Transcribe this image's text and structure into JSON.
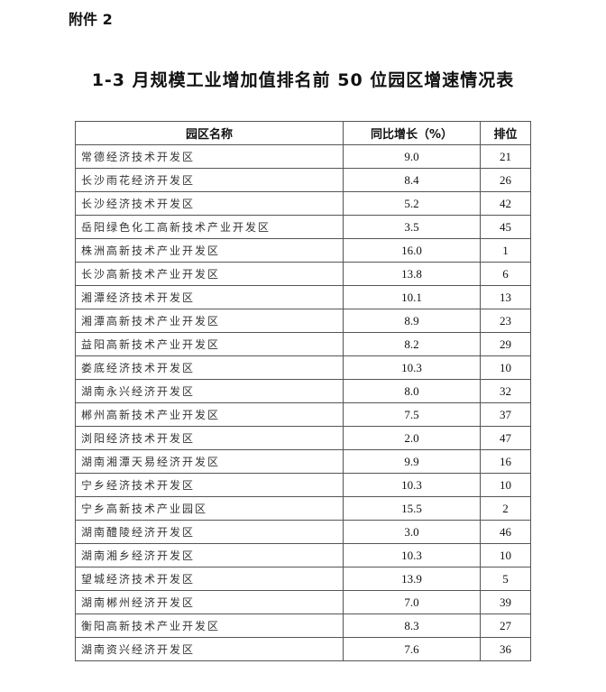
{
  "attachment_label": "附件 2",
  "title": "1-3 月规模工业增加值排名前 50 位园区增速情况表",
  "table": {
    "headers": [
      "园区名称",
      "同比增长（%）",
      "排位"
    ],
    "rows": [
      [
        "常德经济技术开发区",
        "9.0",
        "21"
      ],
      [
        "长沙雨花经济开发区",
        "8.4",
        "26"
      ],
      [
        "长沙经济技术开发区",
        "5.2",
        "42"
      ],
      [
        "岳阳绿色化工高新技术产业开发区",
        "3.5",
        "45"
      ],
      [
        "株洲高新技术产业开发区",
        "16.0",
        "1"
      ],
      [
        "长沙高新技术产业开发区",
        "13.8",
        "6"
      ],
      [
        "湘潭经济技术开发区",
        "10.1",
        "13"
      ],
      [
        "湘潭高新技术产业开发区",
        "8.9",
        "23"
      ],
      [
        "益阳高新技术产业开发区",
        "8.2",
        "29"
      ],
      [
        "娄底经济技术开发区",
        "10.3",
        "10"
      ],
      [
        "湖南永兴经济开发区",
        "8.0",
        "32"
      ],
      [
        "郴州高新技术产业开发区",
        "7.5",
        "37"
      ],
      [
        "浏阳经济技术开发区",
        "2.0",
        "47"
      ],
      [
        "湖南湘潭天易经济开发区",
        "9.9",
        "16"
      ],
      [
        "宁乡经济技术开发区",
        "10.3",
        "10"
      ],
      [
        "宁乡高新技术产业园区",
        "15.5",
        "2"
      ],
      [
        "湖南醴陵经济开发区",
        "3.0",
        "46"
      ],
      [
        "湖南湘乡经济开发区",
        "10.3",
        "10"
      ],
      [
        "望城经济技术开发区",
        "13.9",
        "5"
      ],
      [
        "湖南郴州经济开发区",
        "7.0",
        "39"
      ],
      [
        "衡阳高新技术产业开发区",
        "8.3",
        "27"
      ],
      [
        "湖南资兴经济开发区",
        "7.6",
        "36"
      ]
    ]
  }
}
